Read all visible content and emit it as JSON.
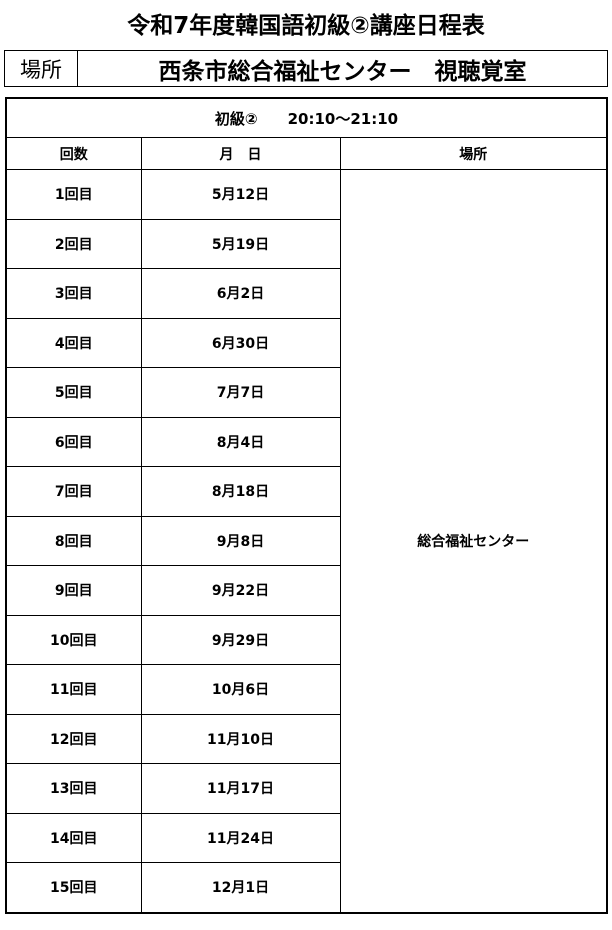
{
  "title": "令和7年度韓国語初級②講座日程表",
  "location": {
    "label": "場所",
    "value": "西条市総合福祉センター　視聴覚室"
  },
  "table": {
    "header": "初級②　　20:10～21:10",
    "columns": [
      "回数",
      "月　日",
      "場所"
    ],
    "place": "総合福祉センター",
    "rows": [
      {
        "n": "1回目",
        "date": "5月12日"
      },
      {
        "n": "2回目",
        "date": "5月19日"
      },
      {
        "n": "3回目",
        "date": "6月2日"
      },
      {
        "n": "4回目",
        "date": "6月30日"
      },
      {
        "n": "5回目",
        "date": "7月7日"
      },
      {
        "n": "6回目",
        "date": "8月4日"
      },
      {
        "n": "7回目",
        "date": "8月18日"
      },
      {
        "n": "8回目",
        "date": "9月8日"
      },
      {
        "n": "9回目",
        "date": "9月22日"
      },
      {
        "n": "10回目",
        "date": "9月29日"
      },
      {
        "n": "11回目",
        "date": "10月6日"
      },
      {
        "n": "12回目",
        "date": "11月10日"
      },
      {
        "n": "13回目",
        "date": "11月17日"
      },
      {
        "n": "14回目",
        "date": "11月24日"
      },
      {
        "n": "15回目",
        "date": "12月1日"
      }
    ]
  }
}
